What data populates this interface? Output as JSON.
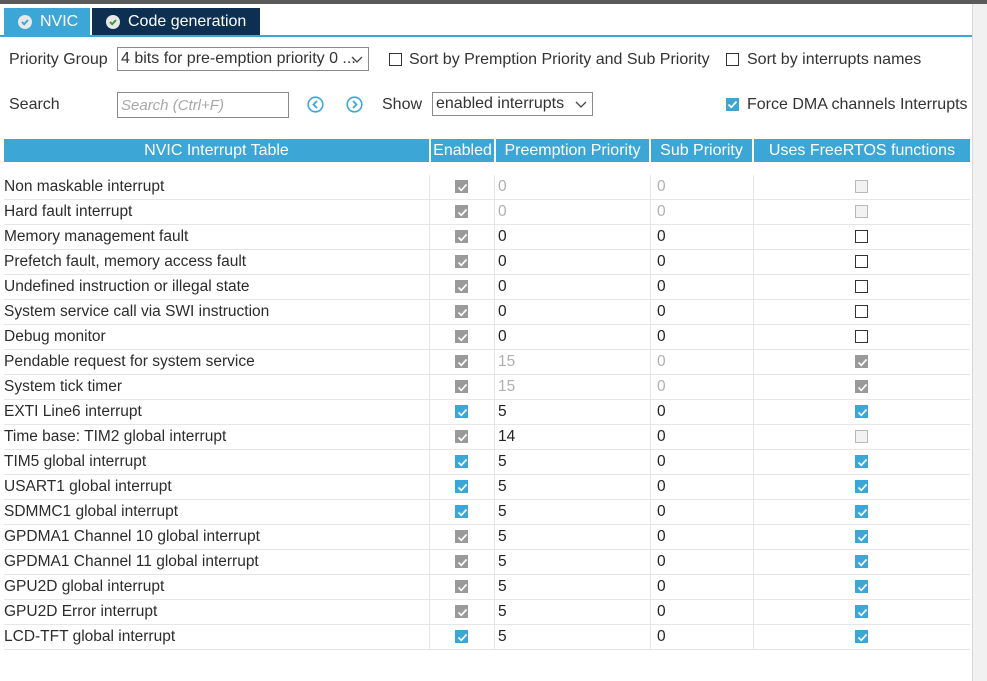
{
  "tabs": [
    {
      "label": "NVIC",
      "icon": "check-circle-icon",
      "color": "#3ca7d6"
    },
    {
      "label": "Code generation",
      "icon": "check-circle-icon",
      "color": "#0d2f52"
    }
  ],
  "toolbar": {
    "priority_group_label": "Priority Group",
    "priority_group_value": "4 bits for pre-emption priority 0 ...",
    "sort_premption_label": "Sort by Premption Priority and Sub Priority",
    "sort_premption_checked": false,
    "sort_names_label": "Sort by interrupts names",
    "sort_names_checked": false,
    "search_label": "Search",
    "search_placeholder": "Search (Ctrl+F)",
    "show_label": "Show",
    "show_value": "enabled interrupts",
    "force_dma_label": "Force DMA channels Interrupts",
    "force_dma_checked": true
  },
  "table": {
    "headers": [
      "NVIC Interrupt Table",
      "Enabled",
      "Preemption Priority",
      "Sub Priority",
      "Uses FreeRTOS functions"
    ],
    "rows": [
      {
        "name": "Non maskable interrupt",
        "enabled": "gray-on",
        "pre": "0",
        "sub": "0",
        "dim": true,
        "freertos": "dis-off"
      },
      {
        "name": "Hard fault interrupt",
        "enabled": "gray-on",
        "pre": "0",
        "sub": "0",
        "dim": true,
        "freertos": "dis-off"
      },
      {
        "name": "Memory management fault",
        "enabled": "gray-on",
        "pre": "0",
        "sub": "0",
        "dim": false,
        "freertos": "off"
      },
      {
        "name": "Prefetch fault, memory access fault",
        "enabled": "gray-on",
        "pre": "0",
        "sub": "0",
        "dim": false,
        "freertos": "off"
      },
      {
        "name": "Undefined instruction or illegal state",
        "enabled": "gray-on",
        "pre": "0",
        "sub": "0",
        "dim": false,
        "freertos": "off"
      },
      {
        "name": "System service call via SWI instruction",
        "enabled": "gray-on",
        "pre": "0",
        "sub": "0",
        "dim": false,
        "freertos": "off"
      },
      {
        "name": "Debug monitor",
        "enabled": "gray-on",
        "pre": "0",
        "sub": "0",
        "dim": false,
        "freertos": "off"
      },
      {
        "name": "Pendable request for system service",
        "enabled": "gray-on",
        "pre": "15",
        "sub": "0",
        "dim": true,
        "freertos": "gray-on"
      },
      {
        "name": "System tick timer",
        "enabled": "gray-on",
        "pre": "15",
        "sub": "0",
        "dim": true,
        "freertos": "gray-on"
      },
      {
        "name": "EXTI Line6 interrupt",
        "enabled": "blue-on",
        "pre": "5",
        "sub": "0",
        "dim": false,
        "freertos": "blue-on"
      },
      {
        "name": "Time base: TIM2 global interrupt",
        "enabled": "gray-on",
        "pre": "14",
        "sub": "0",
        "dim": false,
        "freertos": "dis-off"
      },
      {
        "name": "TIM5 global interrupt",
        "enabled": "blue-on",
        "pre": "5",
        "sub": "0",
        "dim": false,
        "freertos": "blue-on"
      },
      {
        "name": "USART1 global interrupt",
        "enabled": "blue-on",
        "pre": "5",
        "sub": "0",
        "dim": false,
        "freertos": "blue-on"
      },
      {
        "name": "SDMMC1 global interrupt",
        "enabled": "blue-on",
        "pre": "5",
        "sub": "0",
        "dim": false,
        "freertos": "blue-on"
      },
      {
        "name": "GPDMA1 Channel 10 global interrupt",
        "enabled": "gray-on",
        "pre": "5",
        "sub": "0",
        "dim": false,
        "freertos": "blue-on"
      },
      {
        "name": "GPDMA1 Channel 11 global interrupt",
        "enabled": "gray-on",
        "pre": "5",
        "sub": "0",
        "dim": false,
        "freertos": "blue-on"
      },
      {
        "name": "GPU2D global interrupt",
        "enabled": "gray-on",
        "pre": "5",
        "sub": "0",
        "dim": false,
        "freertos": "blue-on"
      },
      {
        "name": "GPU2D Error interrupt",
        "enabled": "gray-on",
        "pre": "5",
        "sub": "0",
        "dim": false,
        "freertos": "blue-on"
      },
      {
        "name": "LCD-TFT global interrupt",
        "enabled": "blue-on",
        "pre": "5",
        "sub": "0",
        "dim": false,
        "freertos": "blue-on"
      }
    ]
  },
  "colors": {
    "accent": "#3ca7d6",
    "tab_dark": "#0d2f52",
    "checkbox_gray": "#9a9a9a"
  }
}
